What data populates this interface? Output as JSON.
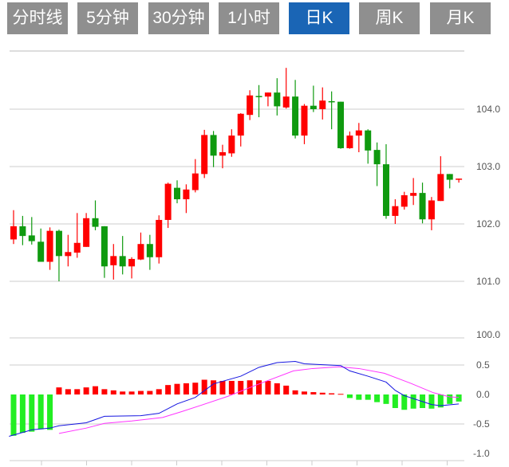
{
  "tabs": [
    {
      "label": "分时线",
      "active": false
    },
    {
      "label": "5分钟",
      "active": false
    },
    {
      "label": "30分钟",
      "active": false
    },
    {
      "label": "1小时",
      "active": false
    },
    {
      "label": "日K",
      "active": true
    },
    {
      "label": "周K",
      "active": false
    },
    {
      "label": "月K",
      "active": false
    }
  ],
  "colors": {
    "up": "#ff0000",
    "down": "#0f9a0f",
    "macd_up": "#ff0000",
    "macd_down": "#22ee22",
    "dif": "#1515e0",
    "dea": "#ff33ff",
    "tab": "#8f8f8f",
    "tab_active": "#1a65b5",
    "grid": "#dddddd"
  },
  "chart_data": [
    {
      "type": "candlestick",
      "title": "",
      "y_ticks": [
        "104.0",
        "103.0",
        "102.0",
        "101.0"
      ],
      "ylim": [
        101.0,
        105.0
      ],
      "ohlc": [
        [
          101.73,
          102.24,
          101.65,
          101.96
        ],
        [
          101.96,
          102.14,
          101.63,
          101.79
        ],
        [
          101.8,
          102.12,
          101.64,
          101.7
        ],
        [
          101.69,
          101.92,
          101.34,
          101.34
        ],
        [
          101.34,
          101.94,
          101.2,
          101.88
        ],
        [
          101.88,
          101.9,
          101.0,
          101.44
        ],
        [
          101.44,
          101.81,
          101.26,
          101.51
        ],
        [
          101.5,
          102.19,
          101.41,
          101.67
        ],
        [
          101.6,
          102.19,
          101.6,
          102.1
        ],
        [
          102.1,
          102.41,
          101.89,
          101.95
        ],
        [
          101.96,
          101.96,
          101.06,
          101.26
        ],
        [
          101.28,
          101.65,
          101.03,
          101.44
        ],
        [
          101.44,
          101.79,
          101.12,
          101.26
        ],
        [
          101.26,
          101.42,
          101.05,
          101.39
        ],
        [
          101.38,
          101.85,
          101.37,
          101.65
        ],
        [
          101.65,
          101.81,
          101.2,
          101.42
        ],
        [
          101.42,
          102.15,
          101.31,
          102.07
        ],
        [
          102.07,
          102.72,
          101.93,
          102.7
        ],
        [
          102.63,
          102.76,
          102.36,
          102.43
        ],
        [
          102.43,
          102.69,
          102.19,
          102.6
        ],
        [
          102.59,
          103.13,
          102.55,
          102.88
        ],
        [
          102.87,
          103.64,
          102.8,
          103.55
        ],
        [
          103.55,
          103.62,
          102.99,
          103.19
        ],
        [
          103.19,
          103.38,
          102.97,
          103.25
        ],
        [
          103.23,
          103.65,
          103.17,
          103.54
        ],
        [
          103.54,
          103.93,
          103.35,
          103.92
        ],
        [
          103.9,
          104.33,
          103.81,
          104.24
        ],
        [
          104.23,
          104.42,
          103.86,
          104.22
        ],
        [
          104.22,
          104.29,
          104.05,
          104.29
        ],
        [
          104.29,
          104.54,
          103.89,
          104.05
        ],
        [
          104.03,
          104.72,
          104.01,
          104.22
        ],
        [
          104.22,
          104.51,
          103.49,
          103.54
        ],
        [
          103.54,
          104.09,
          103.39,
          104.06
        ],
        [
          104.06,
          104.41,
          103.95,
          104.0
        ],
        [
          104.0,
          104.38,
          103.82,
          104.15
        ],
        [
          104.14,
          104.31,
          103.65,
          104.12
        ],
        [
          104.13,
          104.13,
          103.31,
          103.32
        ],
        [
          103.32,
          103.61,
          103.31,
          103.54
        ],
        [
          103.54,
          103.76,
          103.25,
          103.63
        ],
        [
          103.63,
          103.65,
          103.05,
          103.28
        ],
        [
          103.29,
          103.42,
          102.66,
          103.04
        ],
        [
          103.04,
          103.39,
          102.09,
          102.14
        ],
        [
          102.14,
          102.43,
          102.0,
          102.31
        ],
        [
          102.3,
          102.56,
          102.25,
          102.5
        ],
        [
          102.49,
          102.8,
          102.33,
          102.54
        ],
        [
          102.54,
          102.72,
          102.01,
          102.08
        ],
        [
          102.08,
          102.47,
          101.89,
          102.41
        ],
        [
          102.4,
          103.18,
          102.4,
          102.87
        ],
        [
          102.87,
          102.87,
          102.62,
          102.77
        ],
        [
          102.77,
          102.79,
          102.72,
          102.79
        ]
      ]
    },
    {
      "type": "macd",
      "y_ticks": [
        "100.0",
        "0.5",
        "0.0",
        "-0.5",
        "-1.0"
      ],
      "histogram": [
        -0.7,
        -0.65,
        -0.63,
        -0.59,
        -0.6,
        0.12,
        0.09,
        0.09,
        0.12,
        0.14,
        0.09,
        0.07,
        0.05,
        0.05,
        0.06,
        0.06,
        0.09,
        0.16,
        0.18,
        0.19,
        0.2,
        0.25,
        0.24,
        0.23,
        0.23,
        0.23,
        0.24,
        0.24,
        0.23,
        0.19,
        0.15,
        0.07,
        0.05,
        0.04,
        0.03,
        0.02,
        0.01,
        -0.06,
        -0.09,
        -0.09,
        -0.13,
        -0.16,
        -0.23,
        -0.26,
        -0.24,
        -0.23,
        -0.24,
        -0.22,
        -0.16,
        -0.12
      ],
      "dif": [
        [
          0.5,
          -0.71
        ],
        [
          3,
          -0.6
        ],
        [
          5,
          -0.57
        ],
        [
          6,
          -0.53
        ],
        [
          9,
          -0.48
        ],
        [
          11,
          -0.37
        ],
        [
          15,
          -0.36
        ],
        [
          17,
          -0.32
        ],
        [
          19,
          -0.16
        ],
        [
          21,
          -0.05
        ],
        [
          23,
          0.18
        ],
        [
          26,
          0.31
        ],
        [
          28,
          0.46
        ],
        [
          30,
          0.54
        ],
        [
          32,
          0.56
        ],
        [
          33,
          0.52
        ],
        [
          37,
          0.49
        ],
        [
          38,
          0.4
        ],
        [
          40,
          0.31
        ],
        [
          42,
          0.21
        ],
        [
          43,
          0.07
        ],
        [
          44,
          -0.02
        ],
        [
          46,
          -0.12
        ],
        [
          47,
          -0.17
        ],
        [
          48,
          -0.19
        ],
        [
          50,
          -0.16
        ]
      ],
      "dea": [
        [
          6,
          -0.66
        ],
        [
          9,
          -0.57
        ],
        [
          11,
          -0.49
        ],
        [
          14,
          -0.45
        ],
        [
          17.4,
          -0.39
        ],
        [
          19.5,
          -0.29
        ],
        [
          21.7,
          -0.18
        ],
        [
          24.6,
          -0.03
        ],
        [
          28.2,
          0.19
        ],
        [
          31.8,
          0.4
        ],
        [
          33.9,
          0.44
        ],
        [
          36.8,
          0.47
        ],
        [
          39,
          0.44
        ],
        [
          41.8,
          0.36
        ],
        [
          44.7,
          0.19
        ],
        [
          47.2,
          0.03
        ],
        [
          49,
          -0.04
        ],
        [
          50,
          -0.05
        ]
      ]
    }
  ]
}
